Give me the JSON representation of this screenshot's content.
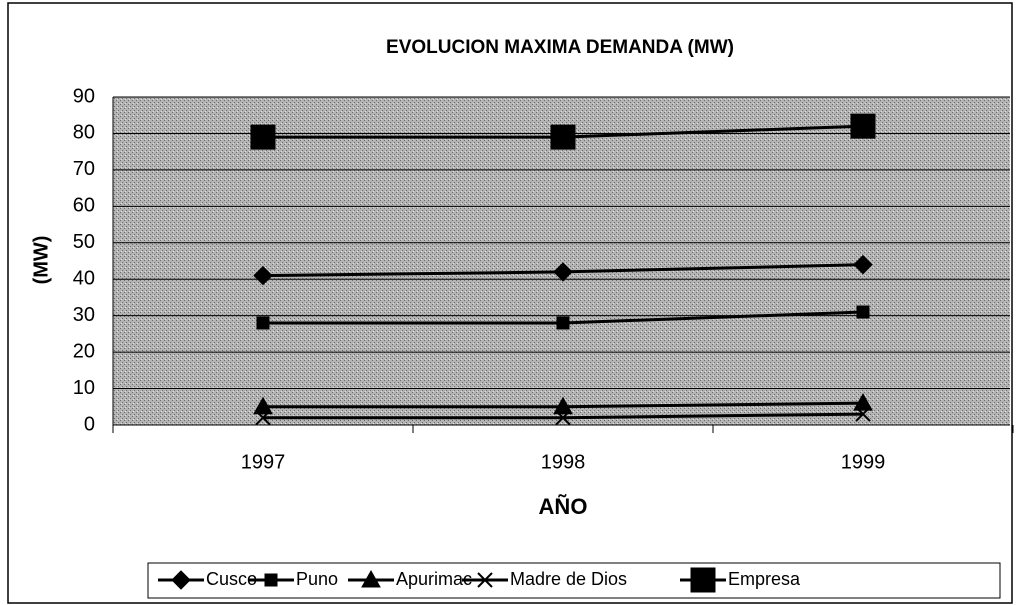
{
  "chart_data": {
    "type": "line",
    "title": "EVOLUCION MAXIMA DEMANDA (MW)",
    "x_label": "AÑO",
    "y_label": "(MW)",
    "categories": [
      "1997",
      "1998",
      "1999"
    ],
    "series": [
      {
        "name": "Cusco",
        "color": "#000000",
        "marker": "diamond",
        "values": [
          41,
          42,
          44
        ]
      },
      {
        "name": "Puno",
        "color": "#000000",
        "marker": "square",
        "values": [
          28,
          28,
          31
        ]
      },
      {
        "name": "Apurimac",
        "color": "#000000",
        "marker": "triangle",
        "values": [
          5,
          5,
          6
        ]
      },
      {
        "name": "Madre de Dios",
        "color": "#000000",
        "marker": "x",
        "values": [
          2,
          2,
          3
        ]
      },
      {
        "name": "Empresa",
        "color": "#000000",
        "marker": "big-square",
        "values": [
          79,
          79,
          82
        ]
      }
    ],
    "ylim": [
      0,
      90
    ],
    "yticks": [
      0,
      10,
      20,
      30,
      40,
      50,
      60,
      70,
      80,
      90
    ],
    "grid": true,
    "legend": "bottom"
  }
}
